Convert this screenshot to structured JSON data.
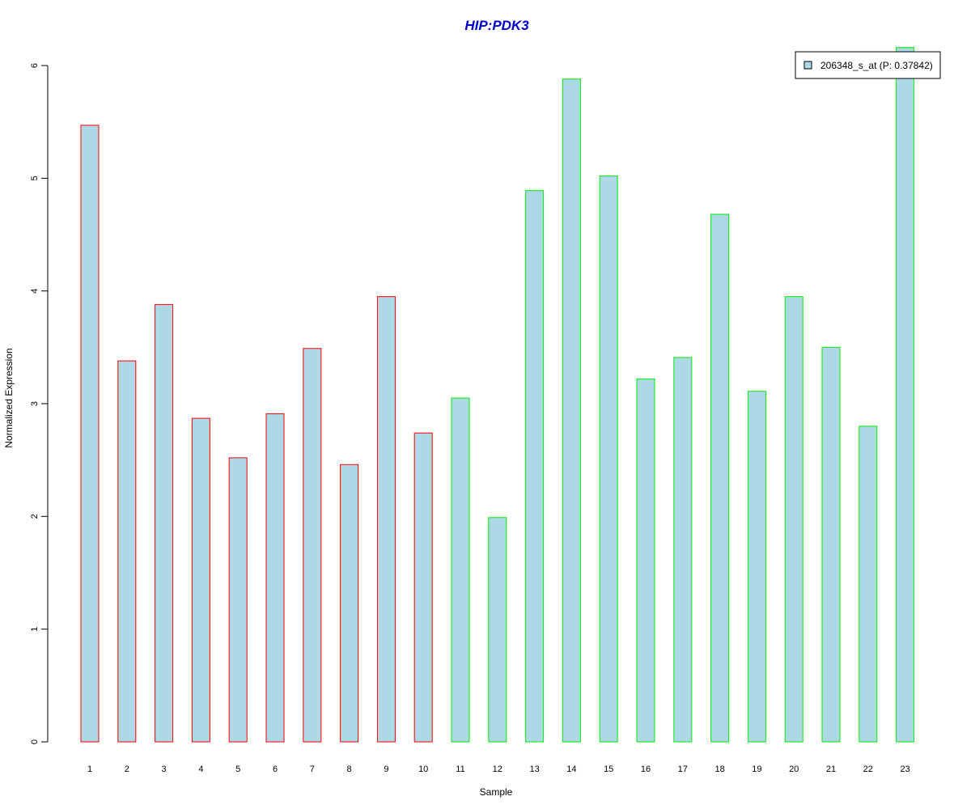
{
  "chart_data": {
    "type": "bar",
    "title": "HIP:PDK3",
    "xlabel": "Sample",
    "ylabel": "Normalized Expression",
    "ylim": [
      0,
      6
    ],
    "yticks": [
      "0",
      "1",
      "2",
      "3",
      "4",
      "5",
      "6"
    ],
    "categories": [
      "1",
      "2",
      "3",
      "4",
      "5",
      "6",
      "7",
      "8",
      "9",
      "10",
      "11",
      "12",
      "13",
      "14",
      "15",
      "16",
      "17",
      "18",
      "19",
      "20",
      "21",
      "22",
      "23"
    ],
    "series": [
      {
        "name": "206348_s_at (P: 0.37842)",
        "values": [
          5.47,
          3.38,
          3.88,
          2.87,
          2.52,
          2.91,
          3.49,
          2.46,
          3.95,
          2.74,
          3.05,
          1.99,
          4.89,
          5.88,
          5.02,
          3.22,
          3.41,
          4.68,
          3.11,
          3.95,
          3.5,
          2.8,
          6.16
        ]
      }
    ],
    "bar_fill": "#add8e6",
    "group_borders": [
      "#ff0000",
      "#ff0000",
      "#ff0000",
      "#ff0000",
      "#ff0000",
      "#ff0000",
      "#ff0000",
      "#ff0000",
      "#ff0000",
      "#ff0000",
      "#00ee00",
      "#00ee00",
      "#00ee00",
      "#00ee00",
      "#00ee00",
      "#00ee00",
      "#00ee00",
      "#00ee00",
      "#00ee00",
      "#00ee00",
      "#00ee00",
      "#00ee00",
      "#00ee00"
    ],
    "title_color": "#0000cc",
    "legend_position": "top-right",
    "grid": false
  }
}
